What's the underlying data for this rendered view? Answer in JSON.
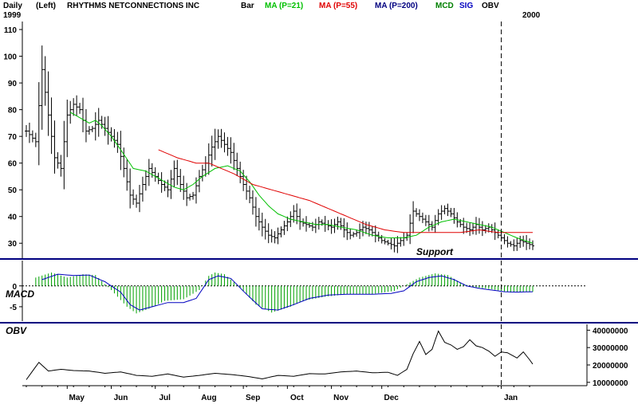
{
  "header": {
    "interval": "Daily",
    "axis_side": "(Left)",
    "ticker_name": "RHYTHMS NETCONNECTIONS INC",
    "start_year": "1999",
    "end_year": "2000",
    "legend": [
      {
        "label": "Bar",
        "color": "#000000"
      },
      {
        "label": "MA (P=21)",
        "color": "#00c000"
      },
      {
        "label": "MA (P=55)",
        "color": "#e00000"
      },
      {
        "label": "MA (P=200)",
        "color": "#000080"
      },
      {
        "label": "MCD",
        "color": "#008000"
      },
      {
        "label": "SIG",
        "color": "#0000c0"
      },
      {
        "label": "OBV",
        "color": "#000000"
      }
    ]
  },
  "panel_labels": {
    "macd": "MACD",
    "obv": "OBV",
    "support": "Support"
  },
  "chart_data": {
    "type": "line",
    "title": "RHYTHMS NETCONNECTIONS INC",
    "x_months": [
      "May",
      "Jun",
      "Jul",
      "Aug",
      "Sep",
      "Oct",
      "Nov",
      "Dec",
      "Jan"
    ],
    "price": {
      "ylim": [
        25,
        113
      ],
      "yticks": [
        30,
        40,
        50,
        60,
        70,
        80,
        90,
        100,
        110
      ],
      "close_keypoints": [
        [
          0,
          72
        ],
        [
          3,
          68
        ],
        [
          5,
          95
        ],
        [
          7,
          78
        ],
        [
          9,
          62
        ],
        [
          11,
          58
        ],
        [
          13,
          78
        ],
        [
          15,
          82
        ],
        [
          17,
          80
        ],
        [
          19,
          72
        ],
        [
          21,
          73
        ],
        [
          23,
          76
        ],
        [
          25,
          73
        ],
        [
          27,
          70
        ],
        [
          29,
          67
        ],
        [
          31,
          58
        ],
        [
          33,
          48
        ],
        [
          35,
          45
        ],
        [
          37,
          52
        ],
        [
          39,
          58
        ],
        [
          41,
          55
        ],
        [
          43,
          52
        ],
        [
          45,
          50
        ],
        [
          47,
          58
        ],
        [
          49,
          52
        ],
        [
          51,
          47
        ],
        [
          53,
          48
        ],
        [
          55,
          55
        ],
        [
          57,
          60
        ],
        [
          59,
          66
        ],
        [
          61,
          70
        ],
        [
          63,
          67
        ],
        [
          65,
          64
        ],
        [
          67,
          58
        ],
        [
          69,
          52
        ],
        [
          71,
          47
        ],
        [
          73,
          40
        ],
        [
          75,
          36
        ],
        [
          77,
          33
        ],
        [
          79,
          32
        ],
        [
          81,
          35
        ],
        [
          83,
          38
        ],
        [
          85,
          42
        ],
        [
          87,
          38
        ],
        [
          89,
          37
        ],
        [
          91,
          36
        ],
        [
          93,
          38
        ],
        [
          95,
          37
        ],
        [
          97,
          36
        ],
        [
          99,
          38
        ],
        [
          101,
          35
        ],
        [
          103,
          33
        ],
        [
          105,
          34
        ],
        [
          107,
          36
        ],
        [
          109,
          35
        ],
        [
          111,
          33
        ],
        [
          113,
          31
        ],
        [
          115,
          30
        ],
        [
          117,
          29
        ],
        [
          119,
          31
        ],
        [
          121,
          33
        ],
        [
          123,
          42
        ],
        [
          125,
          40
        ],
        [
          127,
          38
        ],
        [
          129,
          36
        ],
        [
          131,
          41
        ],
        [
          133,
          43
        ],
        [
          135,
          41
        ],
        [
          137,
          38
        ],
        [
          139,
          36
        ],
        [
          141,
          35
        ],
        [
          143,
          37
        ],
        [
          145,
          35
        ],
        [
          147,
          36
        ],
        [
          149,
          34
        ],
        [
          151,
          32
        ],
        [
          153,
          30
        ],
        [
          155,
          29
        ],
        [
          157,
          31
        ],
        [
          159,
          30
        ],
        [
          161,
          29
        ]
      ],
      "ma21_keypoints": [
        [
          14,
          79
        ],
        [
          17,
          77
        ],
        [
          20,
          75
        ],
        [
          22,
          76
        ],
        [
          24,
          74
        ],
        [
          27,
          70
        ],
        [
          30,
          65
        ],
        [
          34,
          58
        ],
        [
          38,
          57
        ],
        [
          41,
          55
        ],
        [
          44,
          53
        ],
        [
          47,
          51
        ],
        [
          50,
          50
        ],
        [
          53,
          52
        ],
        [
          56,
          55
        ],
        [
          60,
          58
        ],
        [
          64,
          59
        ],
        [
          68,
          57
        ],
        [
          71,
          53
        ],
        [
          74,
          48
        ],
        [
          77,
          44
        ],
        [
          80,
          41
        ],
        [
          84,
          39
        ],
        [
          88,
          38
        ],
        [
          92,
          37
        ],
        [
          96,
          37
        ],
        [
          100,
          36
        ],
        [
          105,
          35
        ],
        [
          110,
          33
        ],
        [
          115,
          32
        ],
        [
          120,
          32
        ],
        [
          124,
          33
        ],
        [
          128,
          36
        ],
        [
          132,
          38
        ],
        [
          136,
          39
        ],
        [
          140,
          38
        ],
        [
          144,
          37
        ],
        [
          148,
          36
        ],
        [
          152,
          34
        ],
        [
          156,
          32
        ],
        [
          161,
          30
        ]
      ],
      "ma55_keypoints": [
        [
          42,
          65
        ],
        [
          48,
          62
        ],
        [
          54,
          60
        ],
        [
          58,
          60
        ],
        [
          62,
          58
        ],
        [
          66,
          56
        ],
        [
          72,
          52
        ],
        [
          78,
          50
        ],
        [
          84,
          48
        ],
        [
          90,
          46
        ],
        [
          96,
          43
        ],
        [
          102,
          40
        ],
        [
          108,
          37
        ],
        [
          114,
          35
        ],
        [
          120,
          34
        ],
        [
          126,
          34
        ],
        [
          132,
          34
        ],
        [
          138,
          34
        ],
        [
          144,
          35
        ],
        [
          150,
          34
        ],
        [
          156,
          34
        ],
        [
          161,
          34
        ]
      ],
      "support_level": 29
    },
    "macd": {
      "ylim": [
        -7.5,
        5.5
      ],
      "yticks": [
        0,
        -5
      ],
      "signal_keypoints": [
        [
          5,
          1.5
        ],
        [
          10,
          2.8
        ],
        [
          15,
          2.5
        ],
        [
          20,
          2.6
        ],
        [
          25,
          1.0
        ],
        [
          30,
          -1.5
        ],
        [
          33,
          -4.5
        ],
        [
          36,
          -5.8
        ],
        [
          40,
          -5.0
        ],
        [
          45,
          -4.0
        ],
        [
          50,
          -4.0
        ],
        [
          54,
          -3.0
        ],
        [
          58,
          1.5
        ],
        [
          61,
          2.4
        ],
        [
          65,
          1.8
        ],
        [
          70,
          -2.0
        ],
        [
          75,
          -5.5
        ],
        [
          80,
          -5.8
        ],
        [
          85,
          -4.5
        ],
        [
          90,
          -3.0
        ],
        [
          96,
          -2.2
        ],
        [
          102,
          -2.0
        ],
        [
          110,
          -2.0
        ],
        [
          116,
          -1.8
        ],
        [
          120,
          -1.2
        ],
        [
          124,
          1.0
        ],
        [
          128,
          2.0
        ],
        [
          132,
          2.4
        ],
        [
          136,
          1.5
        ],
        [
          140,
          0.0
        ],
        [
          144,
          -0.6
        ],
        [
          148,
          -1.0
        ],
        [
          152,
          -1.4
        ],
        [
          156,
          -1.5
        ],
        [
          161,
          -1.4
        ]
      ],
      "histogram_keypoints": [
        [
          3,
          2.0
        ],
        [
          8,
          3.2
        ],
        [
          13,
          2.0
        ],
        [
          18,
          2.8
        ],
        [
          22,
          2.6
        ],
        [
          27,
          -1.0
        ],
        [
          32,
          -5.0
        ],
        [
          35,
          -6.6
        ],
        [
          39,
          -5.5
        ],
        [
          44,
          -3.6
        ],
        [
          50,
          -3.2
        ],
        [
          55,
          -1.0
        ],
        [
          58,
          2.4
        ],
        [
          60,
          3.2
        ],
        [
          63,
          2.8
        ],
        [
          68,
          -0.4
        ],
        [
          73,
          -4.5
        ],
        [
          78,
          -6.4
        ],
        [
          84,
          -5.0
        ],
        [
          88,
          -3.6
        ],
        [
          95,
          -2.6
        ],
        [
          102,
          -2.0
        ],
        [
          110,
          -2.0
        ],
        [
          117,
          -1.2
        ],
        [
          121,
          0.4
        ],
        [
          125,
          2.0
        ],
        [
          130,
          3.0
        ],
        [
          134,
          2.6
        ],
        [
          138,
          0.8
        ],
        [
          142,
          -0.3
        ],
        [
          148,
          -0.8
        ],
        [
          154,
          -1.6
        ],
        [
          161,
          -1.4
        ]
      ]
    },
    "obv": {
      "ylim": [
        9000000,
        42000000
      ],
      "yticks": [
        10000000,
        20000000,
        30000000,
        40000000
      ],
      "ytick_labels": [
        "10000000",
        "20000000",
        "30000000",
        "40000000"
      ],
      "keypoints": [
        [
          0,
          11.5
        ],
        [
          4,
          21.5
        ],
        [
          7,
          16.5
        ],
        [
          11,
          17.5
        ],
        [
          15,
          16.8
        ],
        [
          20,
          16.5
        ],
        [
          25,
          15.2
        ],
        [
          30,
          16.0
        ],
        [
          35,
          14.0
        ],
        [
          40,
          13.5
        ],
        [
          45,
          14.8
        ],
        [
          50,
          13.0
        ],
        [
          55,
          14.0
        ],
        [
          60,
          15.2
        ],
        [
          65,
          14.5
        ],
        [
          70,
          13.5
        ],
        [
          75,
          12.0
        ],
        [
          80,
          14.0
        ],
        [
          85,
          13.5
        ],
        [
          90,
          15.0
        ],
        [
          95,
          14.8
        ],
        [
          100,
          16.0
        ],
        [
          105,
          16.5
        ],
        [
          110,
          15.5
        ],
        [
          115,
          15.8
        ],
        [
          118,
          14.0
        ],
        [
          121,
          17.5
        ],
        [
          123,
          26.5
        ],
        [
          125,
          33.5
        ],
        [
          127,
          26.0
        ],
        [
          129,
          29.0
        ],
        [
          131,
          39.5
        ],
        [
          133,
          33.0
        ],
        [
          135,
          31.5
        ],
        [
          137,
          29.0
        ],
        [
          139,
          30.5
        ],
        [
          141,
          34.5
        ],
        [
          143,
          31.0
        ],
        [
          145,
          30.0
        ],
        [
          147,
          28.0
        ],
        [
          149,
          25.0
        ],
        [
          151,
          27.5
        ],
        [
          153,
          27.0
        ],
        [
          156,
          24.0
        ],
        [
          158,
          27.5
        ],
        [
          160,
          23.0
        ],
        [
          161,
          20.5
        ]
      ]
    },
    "x_month_starts": [
      13,
      27,
      41,
      55,
      69,
      83,
      97,
      113,
      151
    ],
    "year_divider_index": 151
  }
}
